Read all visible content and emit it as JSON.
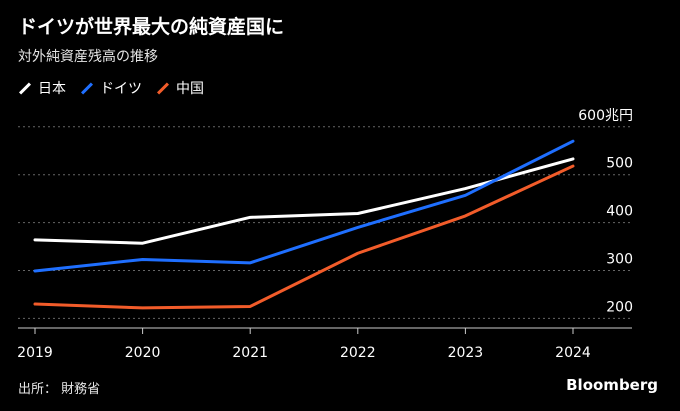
{
  "chart_data": {
    "type": "line",
    "title": "ドイツが世界最大の純資産国に",
    "subtitle": "対外純資産残高の推移",
    "x": [
      "2019",
      "2020",
      "2021",
      "2022",
      "2023",
      "2024"
    ],
    "series": [
      {
        "name": "日本",
        "color": "#ffffff",
        "values": [
          364,
          357,
          411,
          419,
          471,
          533
        ]
      },
      {
        "name": "ドイツ",
        "color": "#1f6fff",
        "values": [
          299,
          323,
          316,
          390,
          457,
          570
        ]
      },
      {
        "name": "中国",
        "color": "#f25c2a",
        "values": [
          230,
          222,
          225,
          336,
          414,
          518
        ]
      }
    ],
    "ylim": [
      180,
      610
    ],
    "yticks": [
      200,
      300,
      400,
      500,
      600
    ],
    "ytick_labels": [
      "200",
      "300",
      "400",
      "500",
      "600兆円"
    ],
    "grid": true,
    "legend": "top-left"
  },
  "footer": {
    "source": "出所： 財務省",
    "brand": "Bloomberg"
  }
}
